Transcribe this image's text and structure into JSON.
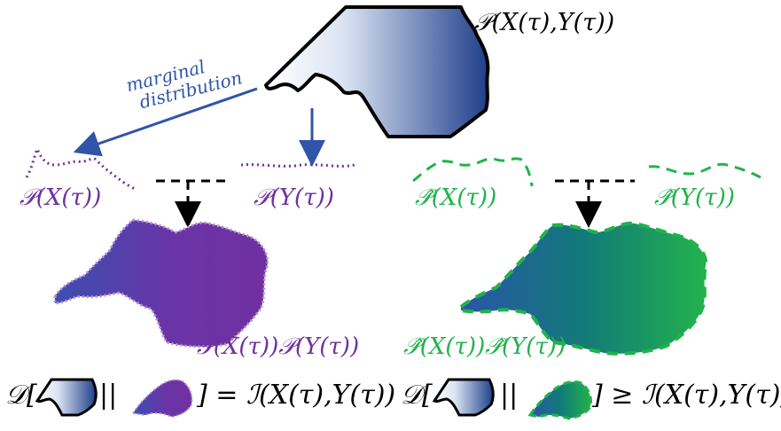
{
  "labels": {
    "joint": "𝒫(X(τ),Y(τ))",
    "marginal_x_purple": "𝒫(X(τ))",
    "marginal_y_purple": "𝒫(Y(τ))",
    "marginal_x_green": "𝒫̂(X(τ))",
    "marginal_y_green": "𝒫̂(Y(τ))",
    "product_purple": "𝒫(X(τ))𝒫(Y(τ))",
    "product_green": "𝒫̂(X(τ))𝒫̂(Y(τ))",
    "marginal_line1": "marginal",
    "marginal_line2": "distribution"
  },
  "equations": {
    "left_prefix": "𝒟[",
    "left_sep": "||",
    "left_suffix": "] = ℐ(X(τ),Y(τ))",
    "right_prefix": "𝒟[",
    "right_sep": "||",
    "right_suffix": "] ≥ ℐ(X(τ),Y(τ))"
  },
  "colors": {
    "blue_dark": "#1f3f8a",
    "purple": "#7030a0",
    "green": "#22b24c",
    "arrow_blue": "#2f54a8"
  }
}
